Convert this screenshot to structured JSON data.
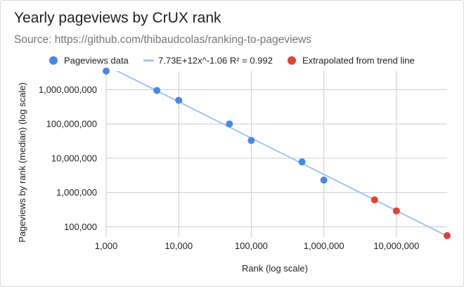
{
  "header": {
    "title": "Yearly pageviews by CrUX rank",
    "subtitle": "Source: https://github.com/thibaudcolas/ranking-to-pageviews"
  },
  "legend": {
    "pageviews_data": "Pageviews data",
    "trendline": "7.73E+12x^-1.06 R² = 0.992",
    "extrapolated": "Extrapolated from trend line"
  },
  "colors": {
    "data_points": "#4a86e8",
    "trendline": "#a4c2f4",
    "extrapolated": "#db4437",
    "grid": "#cccccc"
  },
  "chart_data": {
    "type": "scatter",
    "title": "Yearly pageviews by CrUX rank",
    "subtitle": "Source: https://github.com/thibaudcolas/ranking-to-pageviews",
    "xlabel": "Rank (log scale)",
    "ylabel": "Pageviews by rank (median) (log scale)",
    "x_scale": "log",
    "y_scale": "log",
    "xlim": [
      1000,
      50000000
    ],
    "ylim": [
      50000,
      3500000000
    ],
    "x_ticks": [
      1000,
      10000,
      100000,
      1000000,
      10000000
    ],
    "x_tick_labels": [
      "1,000",
      "10,000",
      "100,000",
      "1,000,000",
      "10,000,000"
    ],
    "y_ticks": [
      100000,
      1000000,
      10000000,
      100000000,
      1000000000
    ],
    "y_tick_labels": [
      "100,000",
      "1,000,000",
      "10,000,000",
      "100,000,000",
      "1,000,000,000"
    ],
    "grid": true,
    "legend_position": "top",
    "series": [
      {
        "name": "Pageviews data",
        "points": [
          {
            "x": 1000,
            "y": 3500000000
          },
          {
            "x": 5000,
            "y": 950000000
          },
          {
            "x": 10000,
            "y": 490000000
          },
          {
            "x": 50000,
            "y": 100000000
          },
          {
            "x": 100000,
            "y": 33000000
          },
          {
            "x": 500000,
            "y": 7800000
          },
          {
            "x": 1000000,
            "y": 2300000
          }
        ]
      },
      {
        "name": "Extrapolated from trend line",
        "points": [
          {
            "x": 5000000,
            "y": 610000
          },
          {
            "x": 10000000,
            "y": 290000
          },
          {
            "x": 50000000,
            "y": 55000
          }
        ]
      }
    ],
    "trendline": {
      "name": "7.73E+12x^-1.06 R² = 0.992",
      "coefficient": 7730000000000,
      "exponent": -1.06,
      "r_squared": 0.992
    }
  }
}
